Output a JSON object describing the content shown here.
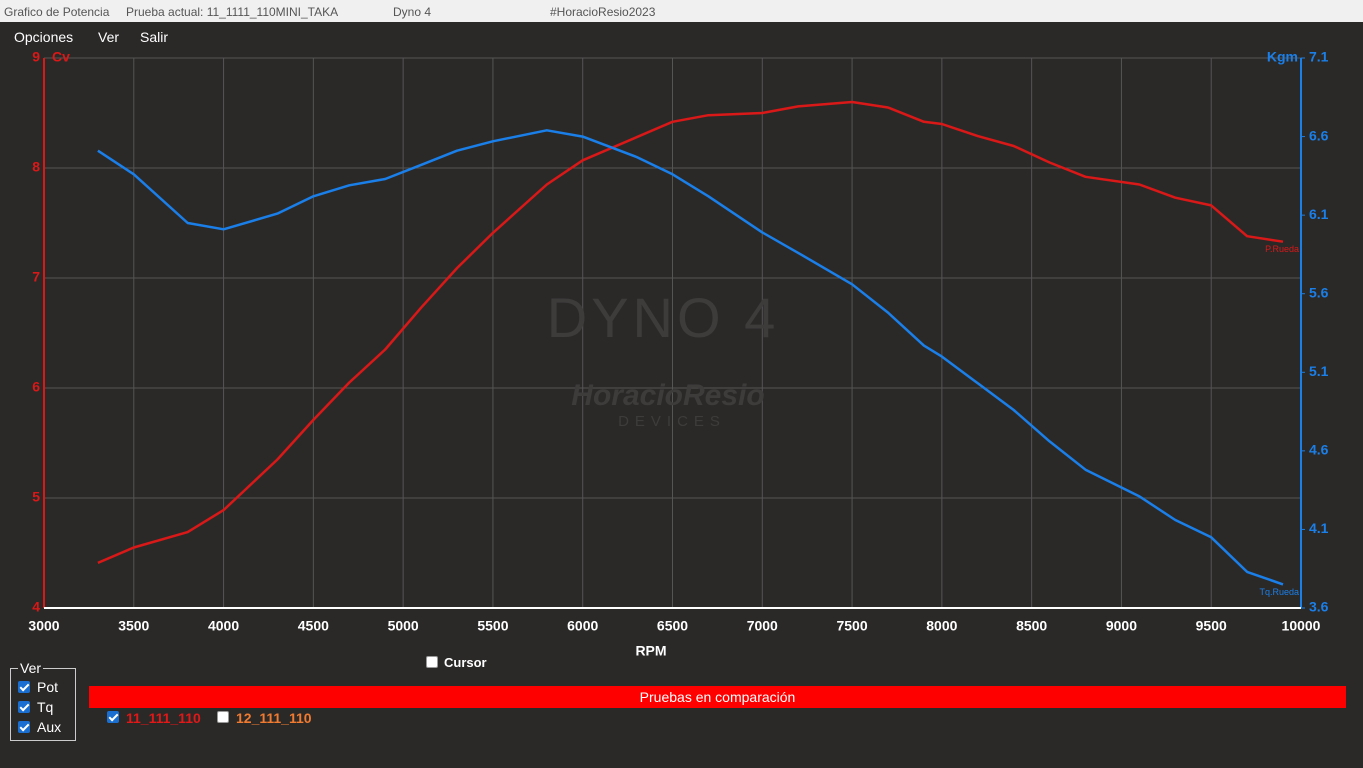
{
  "window": {
    "title_items": [
      "Grafico de Potencia",
      "Prueba actual: 11_1111_110MINI_TAKA",
      "Dyno 4",
      "#HoracioResio2023"
    ]
  },
  "menu": [
    "Opciones",
    "Ver",
    "Salir"
  ],
  "chart_data": {
    "type": "line",
    "xlabel": "RPM",
    "ylabel": "Cv",
    "y2label": "Kgm",
    "watermark": [
      "DYNO 4",
      "HoracioResio",
      "DEVICES"
    ],
    "xlim": [
      3000,
      10000
    ],
    "xticks": [
      3000,
      3500,
      4000,
      4500,
      5000,
      5500,
      6000,
      6500,
      7000,
      7500,
      8000,
      8500,
      9000,
      9500,
      10000
    ],
    "ylim": [
      4,
      9
    ],
    "yticks": [
      4,
      5,
      6,
      7,
      8,
      9
    ],
    "y2lim": [
      3.6,
      7.1
    ],
    "y2ticks": [
      3.6,
      4.1,
      4.6,
      5.1,
      5.6,
      6.1,
      6.6,
      7.1
    ],
    "grid": true,
    "x": [
      3300,
      3500,
      3800,
      4000,
      4300,
      4500,
      4700,
      4900,
      5100,
      5300,
      5500,
      5800,
      6000,
      6300,
      6500,
      6700,
      7000,
      7200,
      7500,
      7700,
      7900,
      8000,
      8200,
      8400,
      8600,
      8800,
      9100,
      9300,
      9500,
      9700,
      9900
    ],
    "series": [
      {
        "name": "P.Rueda",
        "color": "#d91818",
        "values": [
          4.41,
          4.55,
          4.69,
          4.89,
          5.35,
          5.71,
          6.05,
          6.35,
          6.73,
          7.09,
          7.41,
          7.85,
          8.07,
          8.28,
          8.42,
          8.48,
          8.5,
          8.56,
          8.6,
          8.55,
          8.42,
          8.4,
          8.29,
          8.2,
          8.05,
          7.92,
          7.85,
          7.73,
          7.66,
          7.38,
          7.33
        ]
      },
      {
        "name": "Tq.Rueda",
        "color": "#1a7fe8",
        "axis": "y2",
        "values": [
          6.51,
          6.36,
          6.05,
          6.01,
          6.11,
          6.22,
          6.29,
          6.33,
          6.42,
          6.51,
          6.57,
          6.64,
          6.6,
          6.47,
          6.36,
          6.22,
          5.99,
          5.86,
          5.66,
          5.48,
          5.27,
          5.2,
          5.03,
          4.86,
          4.66,
          4.48,
          4.31,
          4.16,
          4.05,
          3.83,
          3.75
        ]
      }
    ]
  },
  "controls": {
    "ver_group": {
      "title": "Ver",
      "items": [
        {
          "label": "Pot",
          "checked": true
        },
        {
          "label": "Tq",
          "checked": true
        },
        {
          "label": "Aux",
          "checked": true
        }
      ]
    },
    "cursor": {
      "label": "Cursor",
      "checked": false
    },
    "comparison": {
      "title": "Pruebas en comparación",
      "tests": [
        {
          "label": "11_111_110",
          "checked": true,
          "color": "#e01818"
        },
        {
          "label": "12_111_110",
          "checked": false,
          "color": "#f07a30"
        }
      ]
    }
  }
}
